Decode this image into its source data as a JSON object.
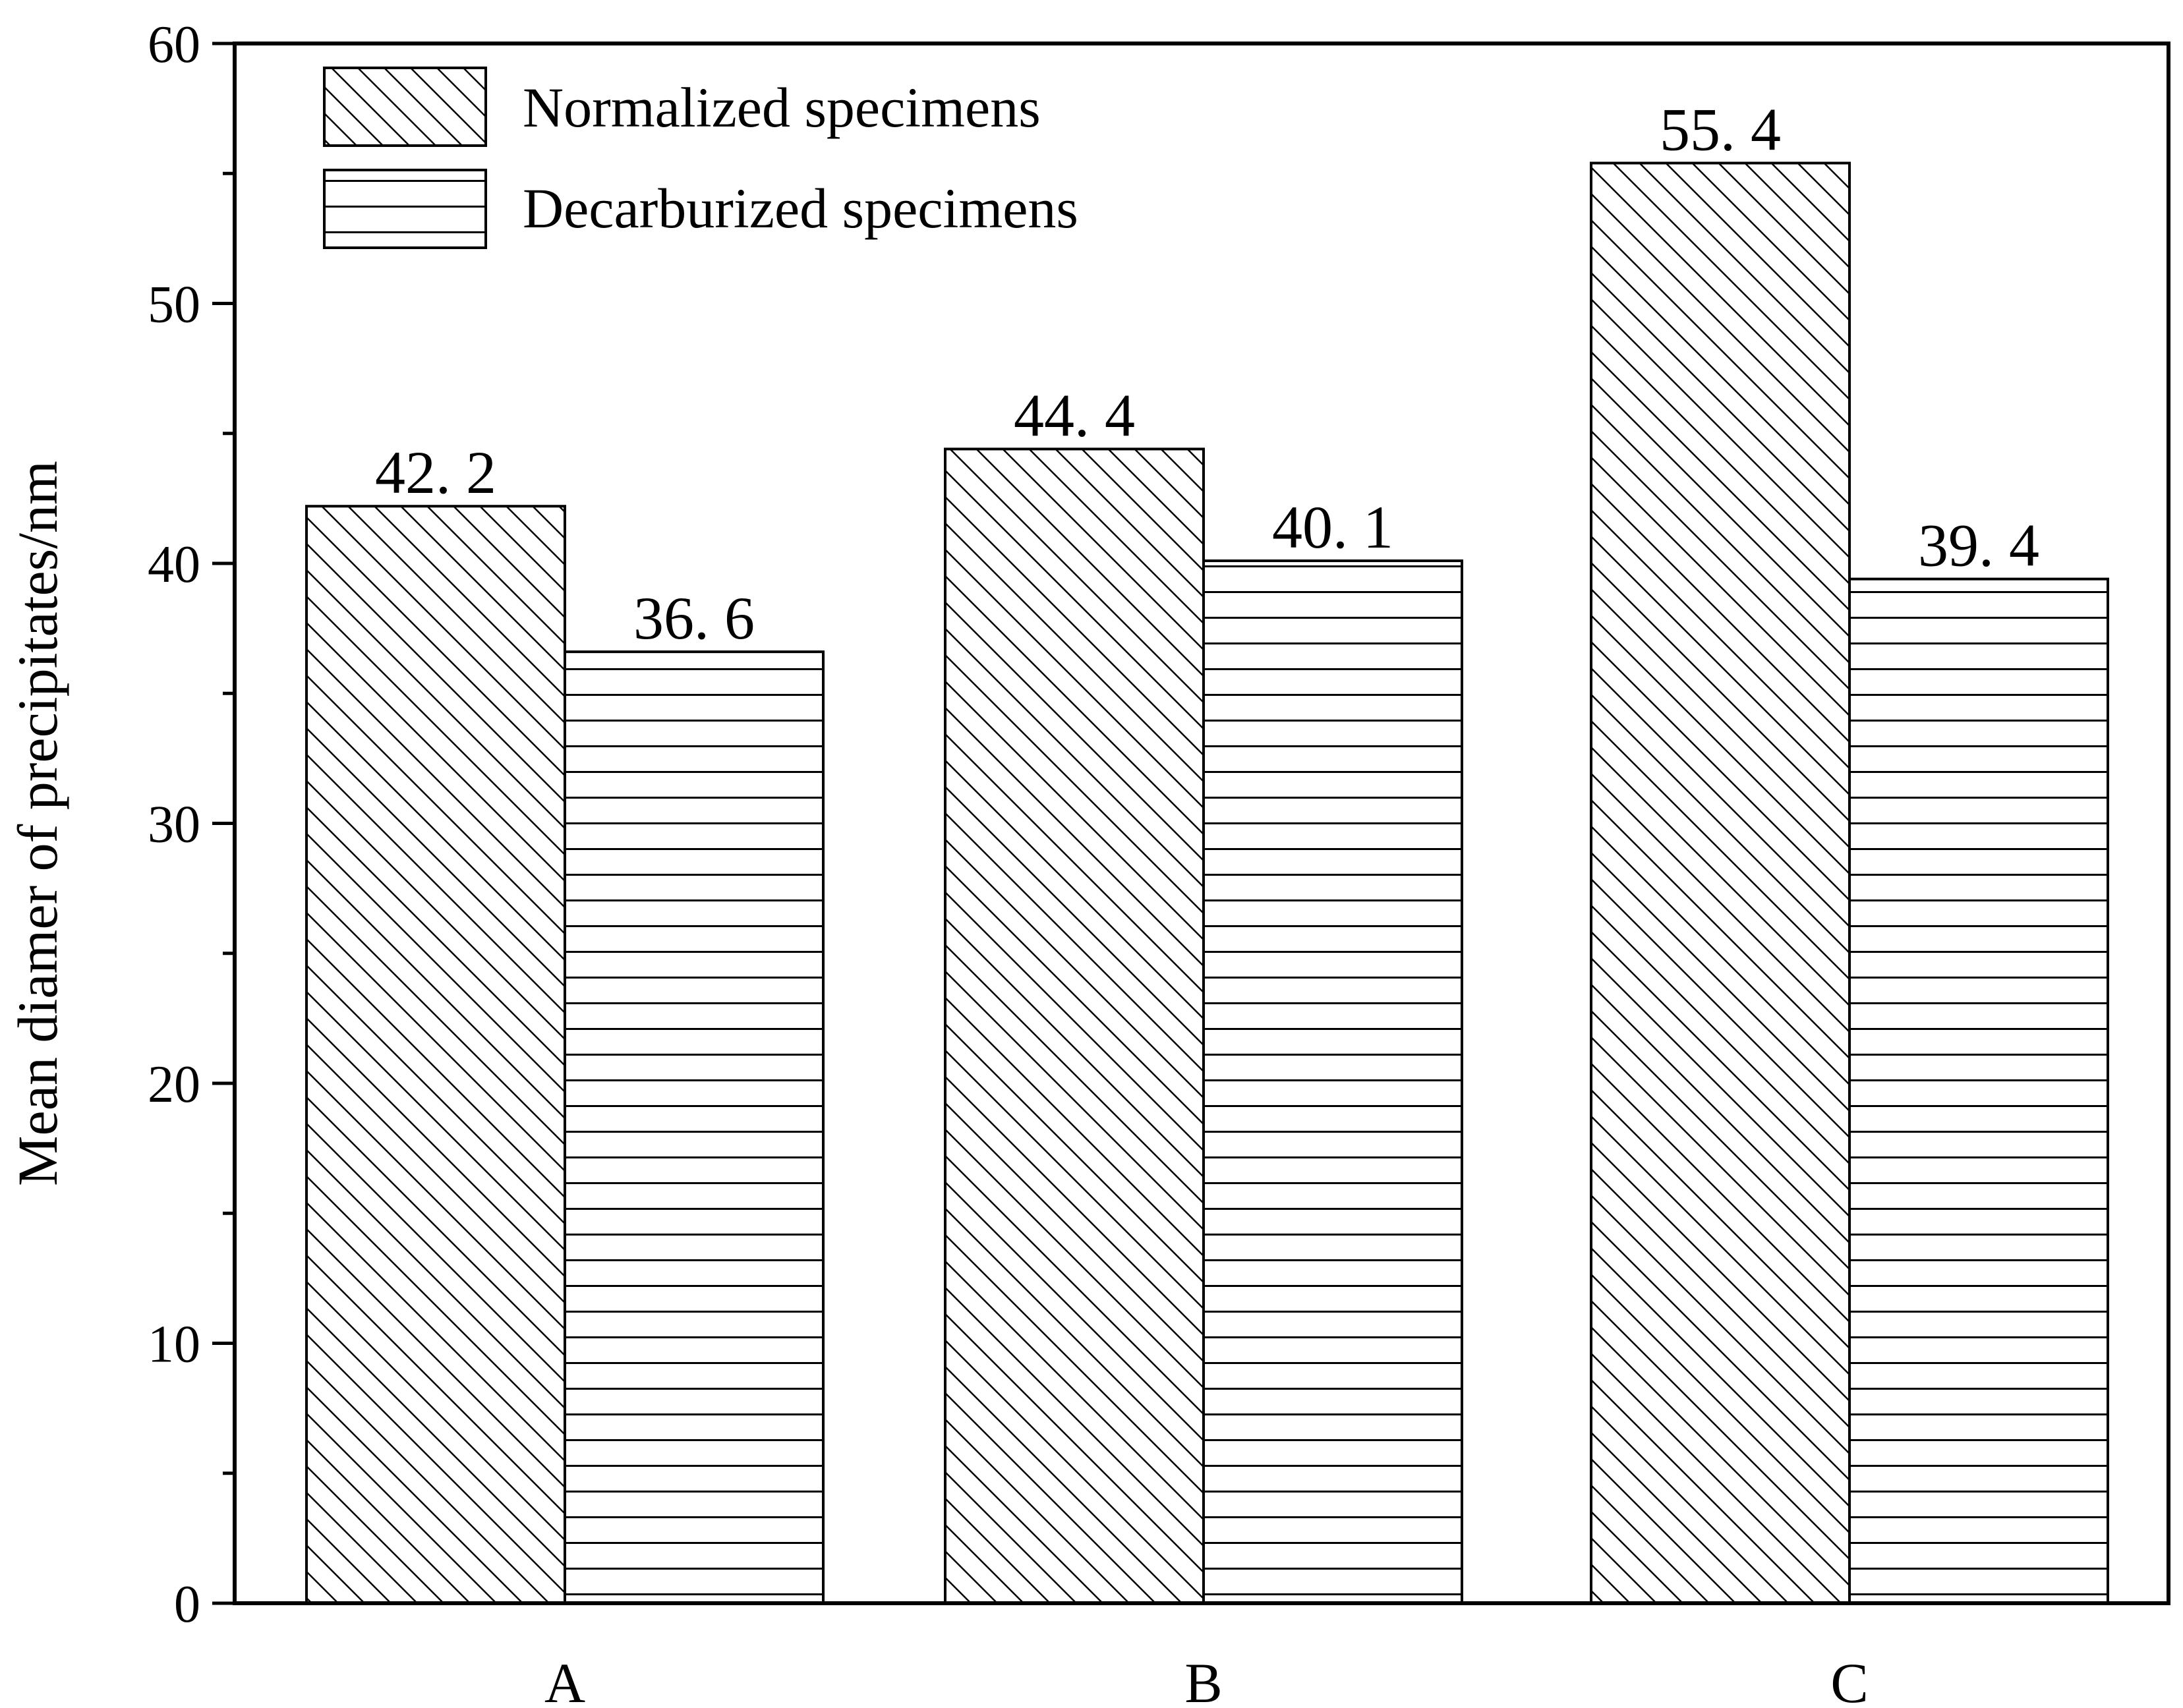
{
  "chart_data": {
    "type": "bar",
    "title": "",
    "xlabel": "",
    "ylabel": "Mean diamer of precipitates/nm",
    "categories": [
      "A",
      "B",
      "C"
    ],
    "ylim": [
      0,
      60
    ],
    "yticks": [
      0,
      10,
      20,
      30,
      40,
      50,
      60
    ],
    "grid": false,
    "legend_position": "top-left",
    "series": [
      {
        "name": "Normalized specimens",
        "values": [
          42.2,
          44.4,
          55.4
        ],
        "labels": [
          "42. 2",
          "44. 4",
          "55. 4"
        ],
        "pattern": "diagonal-hatch",
        "color": "#000000"
      },
      {
        "name": "Decarburized specimens",
        "values": [
          36.6,
          40.1,
          39.4
        ],
        "labels": [
          "36. 6",
          "40. 1",
          "39. 4"
        ],
        "pattern": "horizontal-hatch",
        "color": "#000000"
      }
    ]
  }
}
